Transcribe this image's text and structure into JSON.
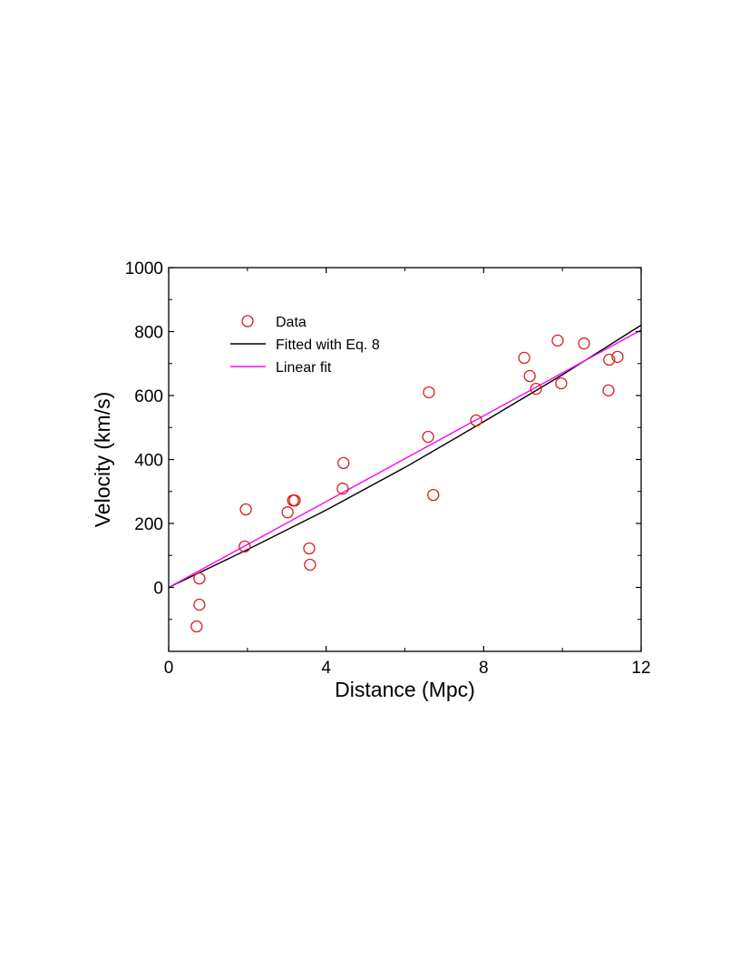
{
  "chart_data": {
    "type": "scatter",
    "title": "",
    "xlabel": "Distance (Mpc)",
    "ylabel": "Velocity (km/s)",
    "xlim": [
      0,
      12
    ],
    "ylim": [
      -200,
      1000
    ],
    "xticks": [
      0,
      4,
      8,
      12
    ],
    "xticks_minor": [
      2,
      6,
      10
    ],
    "yticks": [
      0,
      200,
      400,
      600,
      800,
      1000
    ],
    "yticks_minor": [
      -100,
      100,
      300,
      500,
      700,
      900
    ],
    "grid": false,
    "legend_position": "upper left",
    "series": [
      {
        "name": "Data",
        "kind": "markers",
        "marker": "open-circle",
        "color": "#dd1c1c",
        "x": [
          0.71,
          0.78,
          0.78,
          1.96,
          1.93,
          3.02,
          3.16,
          3.2,
          3.57,
          3.59,
          4.44,
          4.42,
          6.61,
          6.59,
          6.72,
          7.81,
          9.03,
          9.17,
          9.33,
          9.88,
          9.97,
          10.55,
          11.19,
          11.17,
          11.4
        ],
        "y": [
          -122,
          -54,
          28,
          244,
          128,
          235,
          272,
          272,
          122,
          71,
          389,
          309,
          610,
          471,
          289,
          522,
          718,
          661,
          621,
          772,
          638,
          763,
          712,
          616,
          721
        ]
      },
      {
        "name": "Fitted with Eq. 8",
        "kind": "line",
        "color": "#000000",
        "x": [
          0,
          2,
          4,
          6,
          8,
          10,
          12
        ],
        "y": [
          0,
          118,
          242,
          375,
          518,
          665,
          820
        ]
      },
      {
        "name": "Linear fit",
        "kind": "line",
        "color": "#ff00ff",
        "x": [
          0,
          12
        ],
        "y": [
          0,
          805
        ]
      }
    ]
  }
}
